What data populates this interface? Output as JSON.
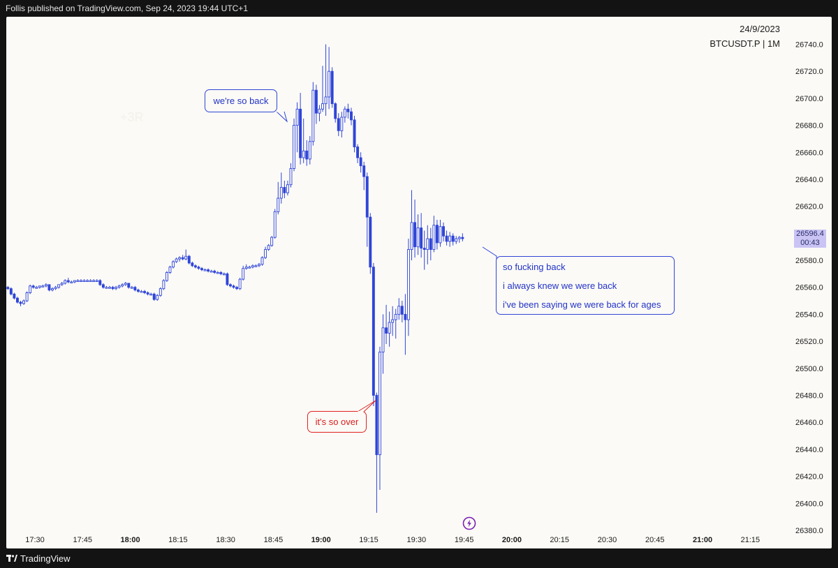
{
  "header": {
    "published_text": "Follis published on TradingView.com, Sep 24, 2023 19:44 UTC+1"
  },
  "chart_info": {
    "date": "24/9/2023",
    "symbol": "BTCUSDT.P | 1M"
  },
  "last_price": {
    "price": "26596.4",
    "countdown": "00:43"
  },
  "footer": {
    "brand": "TradingView"
  },
  "annotations": {
    "bubble_top": "we're so back",
    "bubble_over": "it's so over",
    "bubble_right_lines": [
      "so fucking back",
      "i always knew we were back",
      "i've been saying we were back for ages"
    ],
    "faint_text": "+3R"
  },
  "colors": {
    "candle": "#2f45d8",
    "bullish_body": "#fbfaf6",
    "bearish_body": "#2f45d8",
    "background": "#fbfaf6",
    "frame": "#131313",
    "red_annotation": "#e0231f",
    "price_tag": "#c9c4f3",
    "event_icon": "#7a1fb5"
  },
  "icons": {
    "event": "lightning-icon",
    "logo": "tradingview-logo-icon"
  },
  "chart_data": {
    "type": "candlestick",
    "title": "",
    "xlabel": "",
    "ylabel": "",
    "interval": "1M",
    "ylim": [
      26380,
      26748
    ],
    "xlim": [
      "17:21",
      "21:27"
    ],
    "y_ticks": [
      "26380.0",
      "26400.0",
      "26420.0",
      "26440.0",
      "26460.0",
      "26480.0",
      "26500.0",
      "26520.0",
      "26540.0",
      "26560.0",
      "26580.0",
      "26600.0",
      "26620.0",
      "26640.0",
      "26660.0",
      "26680.0",
      "26700.0",
      "26720.0",
      "26740.0"
    ],
    "x_ticks": [
      {
        "label": "17:30",
        "bold": false
      },
      {
        "label": "17:45",
        "bold": false
      },
      {
        "label": "18:00",
        "bold": true
      },
      {
        "label": "18:15",
        "bold": false
      },
      {
        "label": "18:30",
        "bold": false
      },
      {
        "label": "18:45",
        "bold": false
      },
      {
        "label": "19:00",
        "bold": true
      },
      {
        "label": "19:15",
        "bold": false
      },
      {
        "label": "19:30",
        "bold": false
      },
      {
        "label": "19:45",
        "bold": false
      },
      {
        "label": "20:00",
        "bold": true
      },
      {
        "label": "20:15",
        "bold": false
      },
      {
        "label": "20:30",
        "bold": false
      },
      {
        "label": "20:45",
        "bold": false
      },
      {
        "label": "21:00",
        "bold": true
      },
      {
        "label": "21:15",
        "bold": false
      }
    ],
    "candles": [
      {
        "t": "17:21",
        "o": 26560,
        "h": 26561,
        "l": 26558,
        "c": 26559
      },
      {
        "t": "17:22",
        "o": 26559,
        "h": 26560,
        "l": 26554,
        "c": 26555
      },
      {
        "t": "17:23",
        "o": 26555,
        "h": 26556,
        "l": 26551,
        "c": 26552
      },
      {
        "t": "17:24",
        "o": 26552,
        "h": 26553,
        "l": 26548,
        "c": 26549
      },
      {
        "t": "17:25",
        "o": 26549,
        "h": 26550,
        "l": 26546,
        "c": 26548
      },
      {
        "t": "17:26",
        "o": 26548,
        "h": 26551,
        "l": 26547,
        "c": 26550
      },
      {
        "t": "17:27",
        "o": 26550,
        "h": 26557,
        "l": 26549,
        "c": 26556
      },
      {
        "t": "17:28",
        "o": 26556,
        "h": 26562,
        "l": 26555,
        "c": 26561
      },
      {
        "t": "17:29",
        "o": 26561,
        "h": 26562,
        "l": 26559,
        "c": 26560
      },
      {
        "t": "17:30",
        "o": 26560,
        "h": 26561,
        "l": 26559,
        "c": 26560
      },
      {
        "t": "17:31",
        "o": 26560,
        "h": 26561,
        "l": 26559,
        "c": 26561
      },
      {
        "t": "17:32",
        "o": 26561,
        "h": 26562,
        "l": 26560,
        "c": 26561
      },
      {
        "t": "17:33",
        "o": 26561,
        "h": 26563,
        "l": 26560,
        "c": 26562
      },
      {
        "t": "17:34",
        "o": 26562,
        "h": 26562,
        "l": 26557,
        "c": 26558
      },
      {
        "t": "17:35",
        "o": 26558,
        "h": 26560,
        "l": 26557,
        "c": 26559
      },
      {
        "t": "17:36",
        "o": 26559,
        "h": 26561,
        "l": 26558,
        "c": 26560
      },
      {
        "t": "17:37",
        "o": 26560,
        "h": 26562,
        "l": 26559,
        "c": 26562
      },
      {
        "t": "17:38",
        "o": 26562,
        "h": 26564,
        "l": 26561,
        "c": 26563
      },
      {
        "t": "17:39",
        "o": 26563,
        "h": 26566,
        "l": 26562,
        "c": 26565
      },
      {
        "t": "17:40",
        "o": 26565,
        "h": 26567,
        "l": 26563,
        "c": 26564
      },
      {
        "t": "17:41",
        "o": 26564,
        "h": 26565,
        "l": 26563,
        "c": 26564
      },
      {
        "t": "17:42",
        "o": 26564,
        "h": 26565,
        "l": 26563,
        "c": 26565
      },
      {
        "t": "17:43",
        "o": 26565,
        "h": 26566,
        "l": 26564,
        "c": 26565
      },
      {
        "t": "17:44",
        "o": 26565,
        "h": 26566,
        "l": 26564,
        "c": 26565
      },
      {
        "t": "17:45",
        "o": 26565,
        "h": 26566,
        "l": 26564,
        "c": 26565
      },
      {
        "t": "17:46",
        "o": 26565,
        "h": 26566,
        "l": 26564,
        "c": 26565
      },
      {
        "t": "17:47",
        "o": 26565,
        "h": 26566,
        "l": 26564,
        "c": 26565
      },
      {
        "t": "17:48",
        "o": 26565,
        "h": 26566,
        "l": 26564,
        "c": 26565
      },
      {
        "t": "17:49",
        "o": 26565,
        "h": 26566,
        "l": 26564,
        "c": 26565
      },
      {
        "t": "17:50",
        "o": 26565,
        "h": 26566,
        "l": 26561,
        "c": 26562
      },
      {
        "t": "17:51",
        "o": 26562,
        "h": 26563,
        "l": 26559,
        "c": 26560
      },
      {
        "t": "17:52",
        "o": 26560,
        "h": 26561,
        "l": 26559,
        "c": 26560
      },
      {
        "t": "17:53",
        "o": 26560,
        "h": 26561,
        "l": 26559,
        "c": 26560
      },
      {
        "t": "17:54",
        "o": 26560,
        "h": 26561,
        "l": 26558,
        "c": 26559
      },
      {
        "t": "17:55",
        "o": 26559,
        "h": 26561,
        "l": 26558,
        "c": 26560
      },
      {
        "t": "17:56",
        "o": 26560,
        "h": 26562,
        "l": 26559,
        "c": 26561
      },
      {
        "t": "17:57",
        "o": 26561,
        "h": 26563,
        "l": 26560,
        "c": 26562
      },
      {
        "t": "17:58",
        "o": 26562,
        "h": 26564,
        "l": 26561,
        "c": 26563
      },
      {
        "t": "17:59",
        "o": 26563,
        "h": 26563,
        "l": 26559,
        "c": 26560
      },
      {
        "t": "18:00",
        "o": 26560,
        "h": 26561,
        "l": 26559,
        "c": 26560
      },
      {
        "t": "18:01",
        "o": 26560,
        "h": 26561,
        "l": 26557,
        "c": 26558
      },
      {
        "t": "18:02",
        "o": 26558,
        "h": 26559,
        "l": 26556,
        "c": 26557
      },
      {
        "t": "18:03",
        "o": 26557,
        "h": 26558,
        "l": 26556,
        "c": 26557
      },
      {
        "t": "18:04",
        "o": 26557,
        "h": 26558,
        "l": 26555,
        "c": 26556
      },
      {
        "t": "18:05",
        "o": 26556,
        "h": 26557,
        "l": 26554,
        "c": 26555
      },
      {
        "t": "18:06",
        "o": 26555,
        "h": 26556,
        "l": 26554,
        "c": 26555
      },
      {
        "t": "18:07",
        "o": 26555,
        "h": 26556,
        "l": 26550,
        "c": 26551
      },
      {
        "t": "18:08",
        "o": 26551,
        "h": 26555,
        "l": 26550,
        "c": 26554
      },
      {
        "t": "18:09",
        "o": 26554,
        "h": 26560,
        "l": 26553,
        "c": 26559
      },
      {
        "t": "18:10",
        "o": 26559,
        "h": 26566,
        "l": 26558,
        "c": 26565
      },
      {
        "t": "18:11",
        "o": 26565,
        "h": 26572,
        "l": 26564,
        "c": 26571
      },
      {
        "t": "18:12",
        "o": 26571,
        "h": 26576,
        "l": 26570,
        "c": 26575
      },
      {
        "t": "18:13",
        "o": 26575,
        "h": 26580,
        "l": 26574,
        "c": 26579
      },
      {
        "t": "18:14",
        "o": 26579,
        "h": 26582,
        "l": 26578,
        "c": 26581
      },
      {
        "t": "18:15",
        "o": 26581,
        "h": 26583,
        "l": 26579,
        "c": 26582
      },
      {
        "t": "18:16",
        "o": 26582,
        "h": 26584,
        "l": 26580,
        "c": 26581
      },
      {
        "t": "18:17",
        "o": 26581,
        "h": 26588,
        "l": 26580,
        "c": 26583
      },
      {
        "t": "18:18",
        "o": 26583,
        "h": 26584,
        "l": 26577,
        "c": 26578
      },
      {
        "t": "18:19",
        "o": 26578,
        "h": 26579,
        "l": 26575,
        "c": 26576
      },
      {
        "t": "18:20",
        "o": 26576,
        "h": 26577,
        "l": 26574,
        "c": 26575
      },
      {
        "t": "18:21",
        "o": 26575,
        "h": 26576,
        "l": 26573,
        "c": 26574
      },
      {
        "t": "18:22",
        "o": 26574,
        "h": 26575,
        "l": 26572,
        "c": 26573
      },
      {
        "t": "18:23",
        "o": 26573,
        "h": 26574,
        "l": 26572,
        "c": 26573
      },
      {
        "t": "18:24",
        "o": 26573,
        "h": 26574,
        "l": 26571,
        "c": 26572
      },
      {
        "t": "18:25",
        "o": 26572,
        "h": 26573,
        "l": 26571,
        "c": 26572
      },
      {
        "t": "18:26",
        "o": 26572,
        "h": 26573,
        "l": 26570,
        "c": 26571
      },
      {
        "t": "18:27",
        "o": 26571,
        "h": 26572,
        "l": 26570,
        "c": 26571
      },
      {
        "t": "18:28",
        "o": 26571,
        "h": 26572,
        "l": 26569,
        "c": 26570
      },
      {
        "t": "18:29",
        "o": 26570,
        "h": 26571,
        "l": 26569,
        "c": 26570
      },
      {
        "t": "18:30",
        "o": 26570,
        "h": 26571,
        "l": 26561,
        "c": 26562
      },
      {
        "t": "18:31",
        "o": 26562,
        "h": 26563,
        "l": 26560,
        "c": 26561
      },
      {
        "t": "18:32",
        "o": 26561,
        "h": 26562,
        "l": 26559,
        "c": 26560
      },
      {
        "t": "18:33",
        "o": 26560,
        "h": 26561,
        "l": 26558,
        "c": 26559
      },
      {
        "t": "18:34",
        "o": 26559,
        "h": 26567,
        "l": 26558,
        "c": 26566
      },
      {
        "t": "18:35",
        "o": 26566,
        "h": 26576,
        "l": 26565,
        "c": 26574
      },
      {
        "t": "18:36",
        "o": 26574,
        "h": 26577,
        "l": 26573,
        "c": 26575
      },
      {
        "t": "18:37",
        "o": 26575,
        "h": 26576,
        "l": 26574,
        "c": 26575
      },
      {
        "t": "18:38",
        "o": 26575,
        "h": 26577,
        "l": 26574,
        "c": 26576
      },
      {
        "t": "18:39",
        "o": 26576,
        "h": 26577,
        "l": 26575,
        "c": 26576
      },
      {
        "t": "18:40",
        "o": 26576,
        "h": 26578,
        "l": 26575,
        "c": 26577
      },
      {
        "t": "18:41",
        "o": 26577,
        "h": 26583,
        "l": 26576,
        "c": 26582
      },
      {
        "t": "18:42",
        "o": 26582,
        "h": 26590,
        "l": 26581,
        "c": 26588
      },
      {
        "t": "18:43",
        "o": 26588,
        "h": 26592,
        "l": 26587,
        "c": 26591
      },
      {
        "t": "18:44",
        "o": 26591,
        "h": 26598,
        "l": 26590,
        "c": 26597
      },
      {
        "t": "18:45",
        "o": 26597,
        "h": 26618,
        "l": 26596,
        "c": 26616
      },
      {
        "t": "18:46",
        "o": 26616,
        "h": 26638,
        "l": 26614,
        "c": 26626
      },
      {
        "t": "18:47",
        "o": 26626,
        "h": 26645,
        "l": 26622,
        "c": 26634
      },
      {
        "t": "18:48",
        "o": 26634,
        "h": 26639,
        "l": 26626,
        "c": 26630
      },
      {
        "t": "18:49",
        "o": 26630,
        "h": 26639,
        "l": 26628,
        "c": 26636
      },
      {
        "t": "18:50",
        "o": 26636,
        "h": 26652,
        "l": 26634,
        "c": 26648
      },
      {
        "t": "18:51",
        "o": 26648,
        "h": 26685,
        "l": 26646,
        "c": 26680
      },
      {
        "t": "18:52",
        "o": 26680,
        "h": 26697,
        "l": 26660,
        "c": 26692
      },
      {
        "t": "18:53",
        "o": 26692,
        "h": 26704,
        "l": 26651,
        "c": 26656
      },
      {
        "t": "18:54",
        "o": 26656,
        "h": 26685,
        "l": 26652,
        "c": 26661
      },
      {
        "t": "18:55",
        "o": 26661,
        "h": 26669,
        "l": 26650,
        "c": 26655
      },
      {
        "t": "18:56",
        "o": 26655,
        "h": 26672,
        "l": 26651,
        "c": 26668
      },
      {
        "t": "18:57",
        "o": 26668,
        "h": 26712,
        "l": 26665,
        "c": 26706
      },
      {
        "t": "18:58",
        "o": 26706,
        "h": 26710,
        "l": 26681,
        "c": 26689
      },
      {
        "t": "18:59",
        "o": 26689,
        "h": 26695,
        "l": 26683,
        "c": 26692
      },
      {
        "t": "19:00",
        "o": 26692,
        "h": 26724,
        "l": 26690,
        "c": 26696
      },
      {
        "t": "19:01",
        "o": 26696,
        "h": 26740,
        "l": 26687,
        "c": 26701
      },
      {
        "t": "19:02",
        "o": 26701,
        "h": 26738,
        "l": 26692,
        "c": 26720
      },
      {
        "t": "19:03",
        "o": 26720,
        "h": 26723,
        "l": 26693,
        "c": 26696
      },
      {
        "t": "19:04",
        "o": 26696,
        "h": 26697,
        "l": 26682,
        "c": 26685
      },
      {
        "t": "19:05",
        "o": 26685,
        "h": 26689,
        "l": 26672,
        "c": 26676
      },
      {
        "t": "19:06",
        "o": 26676,
        "h": 26690,
        "l": 26671,
        "c": 26686
      },
      {
        "t": "19:07",
        "o": 26686,
        "h": 26694,
        "l": 26682,
        "c": 26692
      },
      {
        "t": "19:08",
        "o": 26692,
        "h": 26696,
        "l": 26685,
        "c": 26690
      },
      {
        "t": "19:09",
        "o": 26690,
        "h": 26693,
        "l": 26680,
        "c": 26684
      },
      {
        "t": "19:10",
        "o": 26684,
        "h": 26687,
        "l": 26660,
        "c": 26664
      },
      {
        "t": "19:11",
        "o": 26664,
        "h": 26666,
        "l": 26652,
        "c": 26656
      },
      {
        "t": "19:12",
        "o": 26656,
        "h": 26660,
        "l": 26645,
        "c": 26650
      },
      {
        "t": "19:13",
        "o": 26650,
        "h": 26653,
        "l": 26632,
        "c": 26642
      },
      {
        "t": "19:14",
        "o": 26642,
        "h": 26645,
        "l": 26590,
        "c": 26612
      },
      {
        "t": "19:15",
        "o": 26612,
        "h": 26615,
        "l": 26570,
        "c": 26575
      },
      {
        "t": "19:16",
        "o": 26575,
        "h": 26578,
        "l": 26472,
        "c": 26480
      },
      {
        "t": "19:17",
        "o": 26480,
        "h": 26482,
        "l": 26393,
        "c": 26436
      },
      {
        "t": "19:18",
        "o": 26436,
        "h": 26516,
        "l": 26410,
        "c": 26512
      },
      {
        "t": "19:19",
        "o": 26512,
        "h": 26540,
        "l": 26496,
        "c": 26530
      },
      {
        "t": "19:20",
        "o": 26530,
        "h": 26547,
        "l": 26518,
        "c": 26526
      },
      {
        "t": "19:21",
        "o": 26526,
        "h": 26542,
        "l": 26516,
        "c": 26534
      },
      {
        "t": "19:22",
        "o": 26534,
        "h": 26546,
        "l": 26524,
        "c": 26536
      },
      {
        "t": "19:23",
        "o": 26536,
        "h": 26544,
        "l": 26522,
        "c": 26540
      },
      {
        "t": "19:24",
        "o": 26540,
        "h": 26552,
        "l": 26536,
        "c": 26546
      },
      {
        "t": "19:25",
        "o": 26546,
        "h": 26550,
        "l": 26534,
        "c": 26540
      },
      {
        "t": "19:26",
        "o": 26540,
        "h": 26555,
        "l": 26510,
        "c": 26536
      },
      {
        "t": "19:27",
        "o": 26536,
        "h": 26596,
        "l": 26524,
        "c": 26588
      },
      {
        "t": "19:28",
        "o": 26588,
        "h": 26632,
        "l": 26580,
        "c": 26608
      },
      {
        "t": "19:29",
        "o": 26608,
        "h": 26625,
        "l": 26582,
        "c": 26590
      },
      {
        "t": "19:30",
        "o": 26590,
        "h": 26614,
        "l": 26584,
        "c": 26604
      },
      {
        "t": "19:31",
        "o": 26604,
        "h": 26615,
        "l": 26582,
        "c": 26589
      },
      {
        "t": "19:32",
        "o": 26589,
        "h": 26602,
        "l": 26573,
        "c": 26588
      },
      {
        "t": "19:33",
        "o": 26588,
        "h": 26606,
        "l": 26577,
        "c": 26596
      },
      {
        "t": "19:34",
        "o": 26596,
        "h": 26604,
        "l": 26580,
        "c": 26588
      },
      {
        "t": "19:35",
        "o": 26588,
        "h": 26613,
        "l": 26586,
        "c": 26606
      },
      {
        "t": "19:36",
        "o": 26606,
        "h": 26610,
        "l": 26588,
        "c": 26593
      },
      {
        "t": "19:37",
        "o": 26593,
        "h": 26610,
        "l": 26590,
        "c": 26605
      },
      {
        "t": "19:38",
        "o": 26605,
        "h": 26608,
        "l": 26594,
        "c": 26598
      },
      {
        "t": "19:39",
        "o": 26598,
        "h": 26602,
        "l": 26591,
        "c": 26594
      },
      {
        "t": "19:40",
        "o": 26594,
        "h": 26601,
        "l": 26590,
        "c": 26598
      },
      {
        "t": "19:41",
        "o": 26598,
        "h": 26600,
        "l": 26591,
        "c": 26594
      },
      {
        "t": "19:42",
        "o": 26594,
        "h": 26598,
        "l": 26592,
        "c": 26596
      },
      {
        "t": "19:43",
        "o": 26596,
        "h": 26598,
        "l": 26593,
        "c": 26597
      },
      {
        "t": "19:44",
        "o": 26597,
        "h": 26600,
        "l": 26594,
        "c": 26596
      }
    ]
  }
}
